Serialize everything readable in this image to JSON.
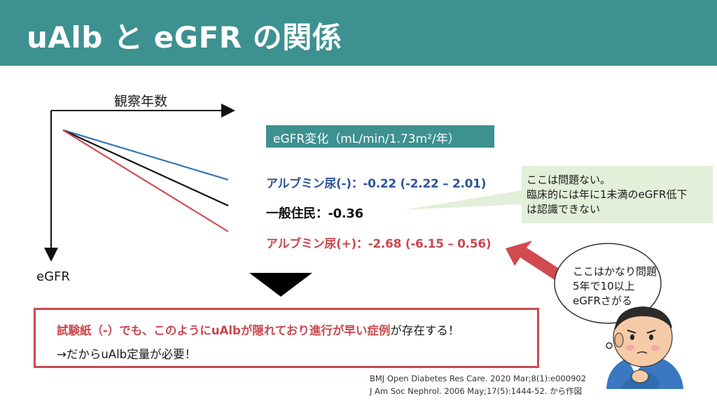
{
  "header": {
    "title": "uAlb と eGFR の関係"
  },
  "graph": {
    "x_axis_label": "観察年数",
    "y_axis_label": "eGFR",
    "colors": {
      "negative": "#2e75b6",
      "general": "#111111",
      "positive": "#d04a4f"
    }
  },
  "legend": {
    "box_label": "eGFR変化（mL/min/1.73m²/年）",
    "negative": "アルブミン尿(-)：-0.22 (-2.22 – 2.01)",
    "general": "一般住民：-0.36",
    "positive": "アルブミン尿(+)：-2.68 (-6.15 – 0.56)"
  },
  "callout": {
    "line1": "ここは問題ない。",
    "line2": "臨床的には年に1未満のeGFR低下",
    "line3": "は認識できない"
  },
  "bubble": {
    "line1": "ここはかなり問題",
    "line2": "5年で10以上",
    "line3": "eGFRさがる"
  },
  "note": {
    "line1_highlight": "試験紙（-）でも、このようにuAlbが隠れており進行が早い症例",
    "line1_tail": "が存在する！",
    "line2": "→だからuAlb定量が必要！"
  },
  "references": {
    "ref1": "BMJ Open Diabetes Res Care. 2020 Mar;8(1):e000902",
    "ref2": "J Am Soc Nephrol. 2006 May;17(5):1444-52.  から作図"
  },
  "theme": {
    "header_color": "#3d9190",
    "accent_red": "#c9494e",
    "callout_green": "#e2efd9"
  }
}
